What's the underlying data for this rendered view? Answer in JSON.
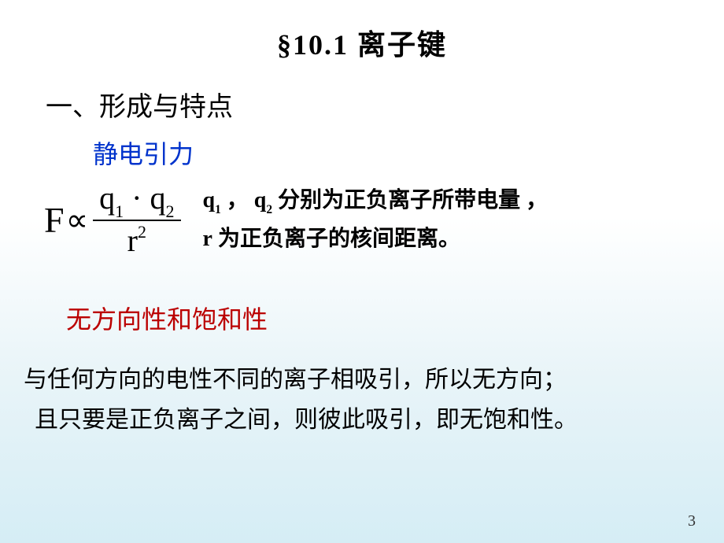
{
  "title": "§10.1   离子键",
  "heading1": "一、形成与特点",
  "subheading1": "静电引力",
  "formula": {
    "lhs": "F",
    "prop": "∝",
    "num_q1": "q",
    "num_sub1": "1",
    "num_dot": "·",
    "num_q2": "q",
    "num_sub2": "2",
    "den_r": "r",
    "den_sup": "2"
  },
  "explain": {
    "line1_pre": "q",
    "line1_sub1": "1",
    "line1_mid1": " ， ",
    "line1_q2": "q",
    "line1_sub2": "2",
    "line1_post": "  分别为正负离子所带电量 ，",
    "line2_r": "r",
    "line2_post": "  为正负离子的核间距离。"
  },
  "subheading2": "无方向性和饱和性",
  "body": {
    "line1": "与任何方向的电性不同的离子相吸引，所以无方向；",
    "line2": "且只要是正负离子之间，则彼此吸引，即无饱和性。"
  },
  "page_number": "3",
  "colors": {
    "blue": "#0033cc",
    "red": "#bb0000",
    "text": "#000000"
  }
}
